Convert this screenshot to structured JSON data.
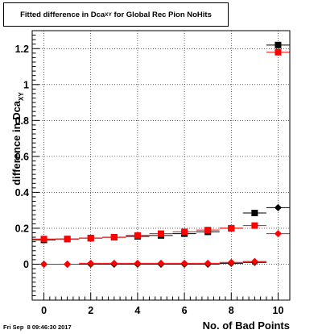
{
  "chart_data": {
    "type": "scatter",
    "title": "Fitted difference in Dca",
    "title_sub": "XY",
    "title_rest": " for Global Rec Pion NoHits",
    "xlabel": "No. of Bad Points",
    "ylabel": "difference in Dca",
    "ylabel_sub": "XY",
    "xlim": [
      -0.5,
      10.5
    ],
    "ylim": [
      -0.2,
      1.3
    ],
    "xticks": [
      0,
      2,
      4,
      6,
      8,
      10
    ],
    "yticks": [
      0,
      0.2,
      0.4,
      0.6,
      0.8,
      1,
      1.2
    ],
    "xtick_labels": [
      "0",
      "2",
      "4",
      "6",
      "8",
      "10"
    ],
    "ytick_labels": [
      "0",
      "0.2",
      "0.4",
      "0.6",
      "0.8",
      "1",
      "1.2"
    ],
    "grid": true,
    "x": [
      0,
      1,
      2,
      3,
      4,
      5,
      6,
      7,
      8,
      9,
      10
    ],
    "series": [
      {
        "marker": "square",
        "color": "#000000",
        "values": [
          0.135,
          0.14,
          0.145,
          0.15,
          0.155,
          0.16,
          0.17,
          0.18,
          0.2,
          0.285,
          1.22
        ]
      },
      {
        "marker": "square",
        "color": "#ff0000",
        "values": [
          0.14,
          0.14,
          0.145,
          0.15,
          0.16,
          0.17,
          0.18,
          0.19,
          0.2,
          0.215,
          1.18
        ]
      },
      {
        "marker": "diamond",
        "color": "#000000",
        "values": [
          0.0,
          0.0,
          0.0,
          0.0,
          0.0,
          0.0,
          0.0,
          0.0,
          0.005,
          0.01,
          0.315
        ]
      },
      {
        "marker": "diamond",
        "color": "#ff0000",
        "values": [
          0.0,
          0.0,
          0.005,
          0.005,
          0.005,
          0.005,
          0.005,
          0.005,
          0.01,
          0.015,
          0.17
        ]
      }
    ]
  },
  "footer": "Fri Sep  8 09:46:30 2017"
}
